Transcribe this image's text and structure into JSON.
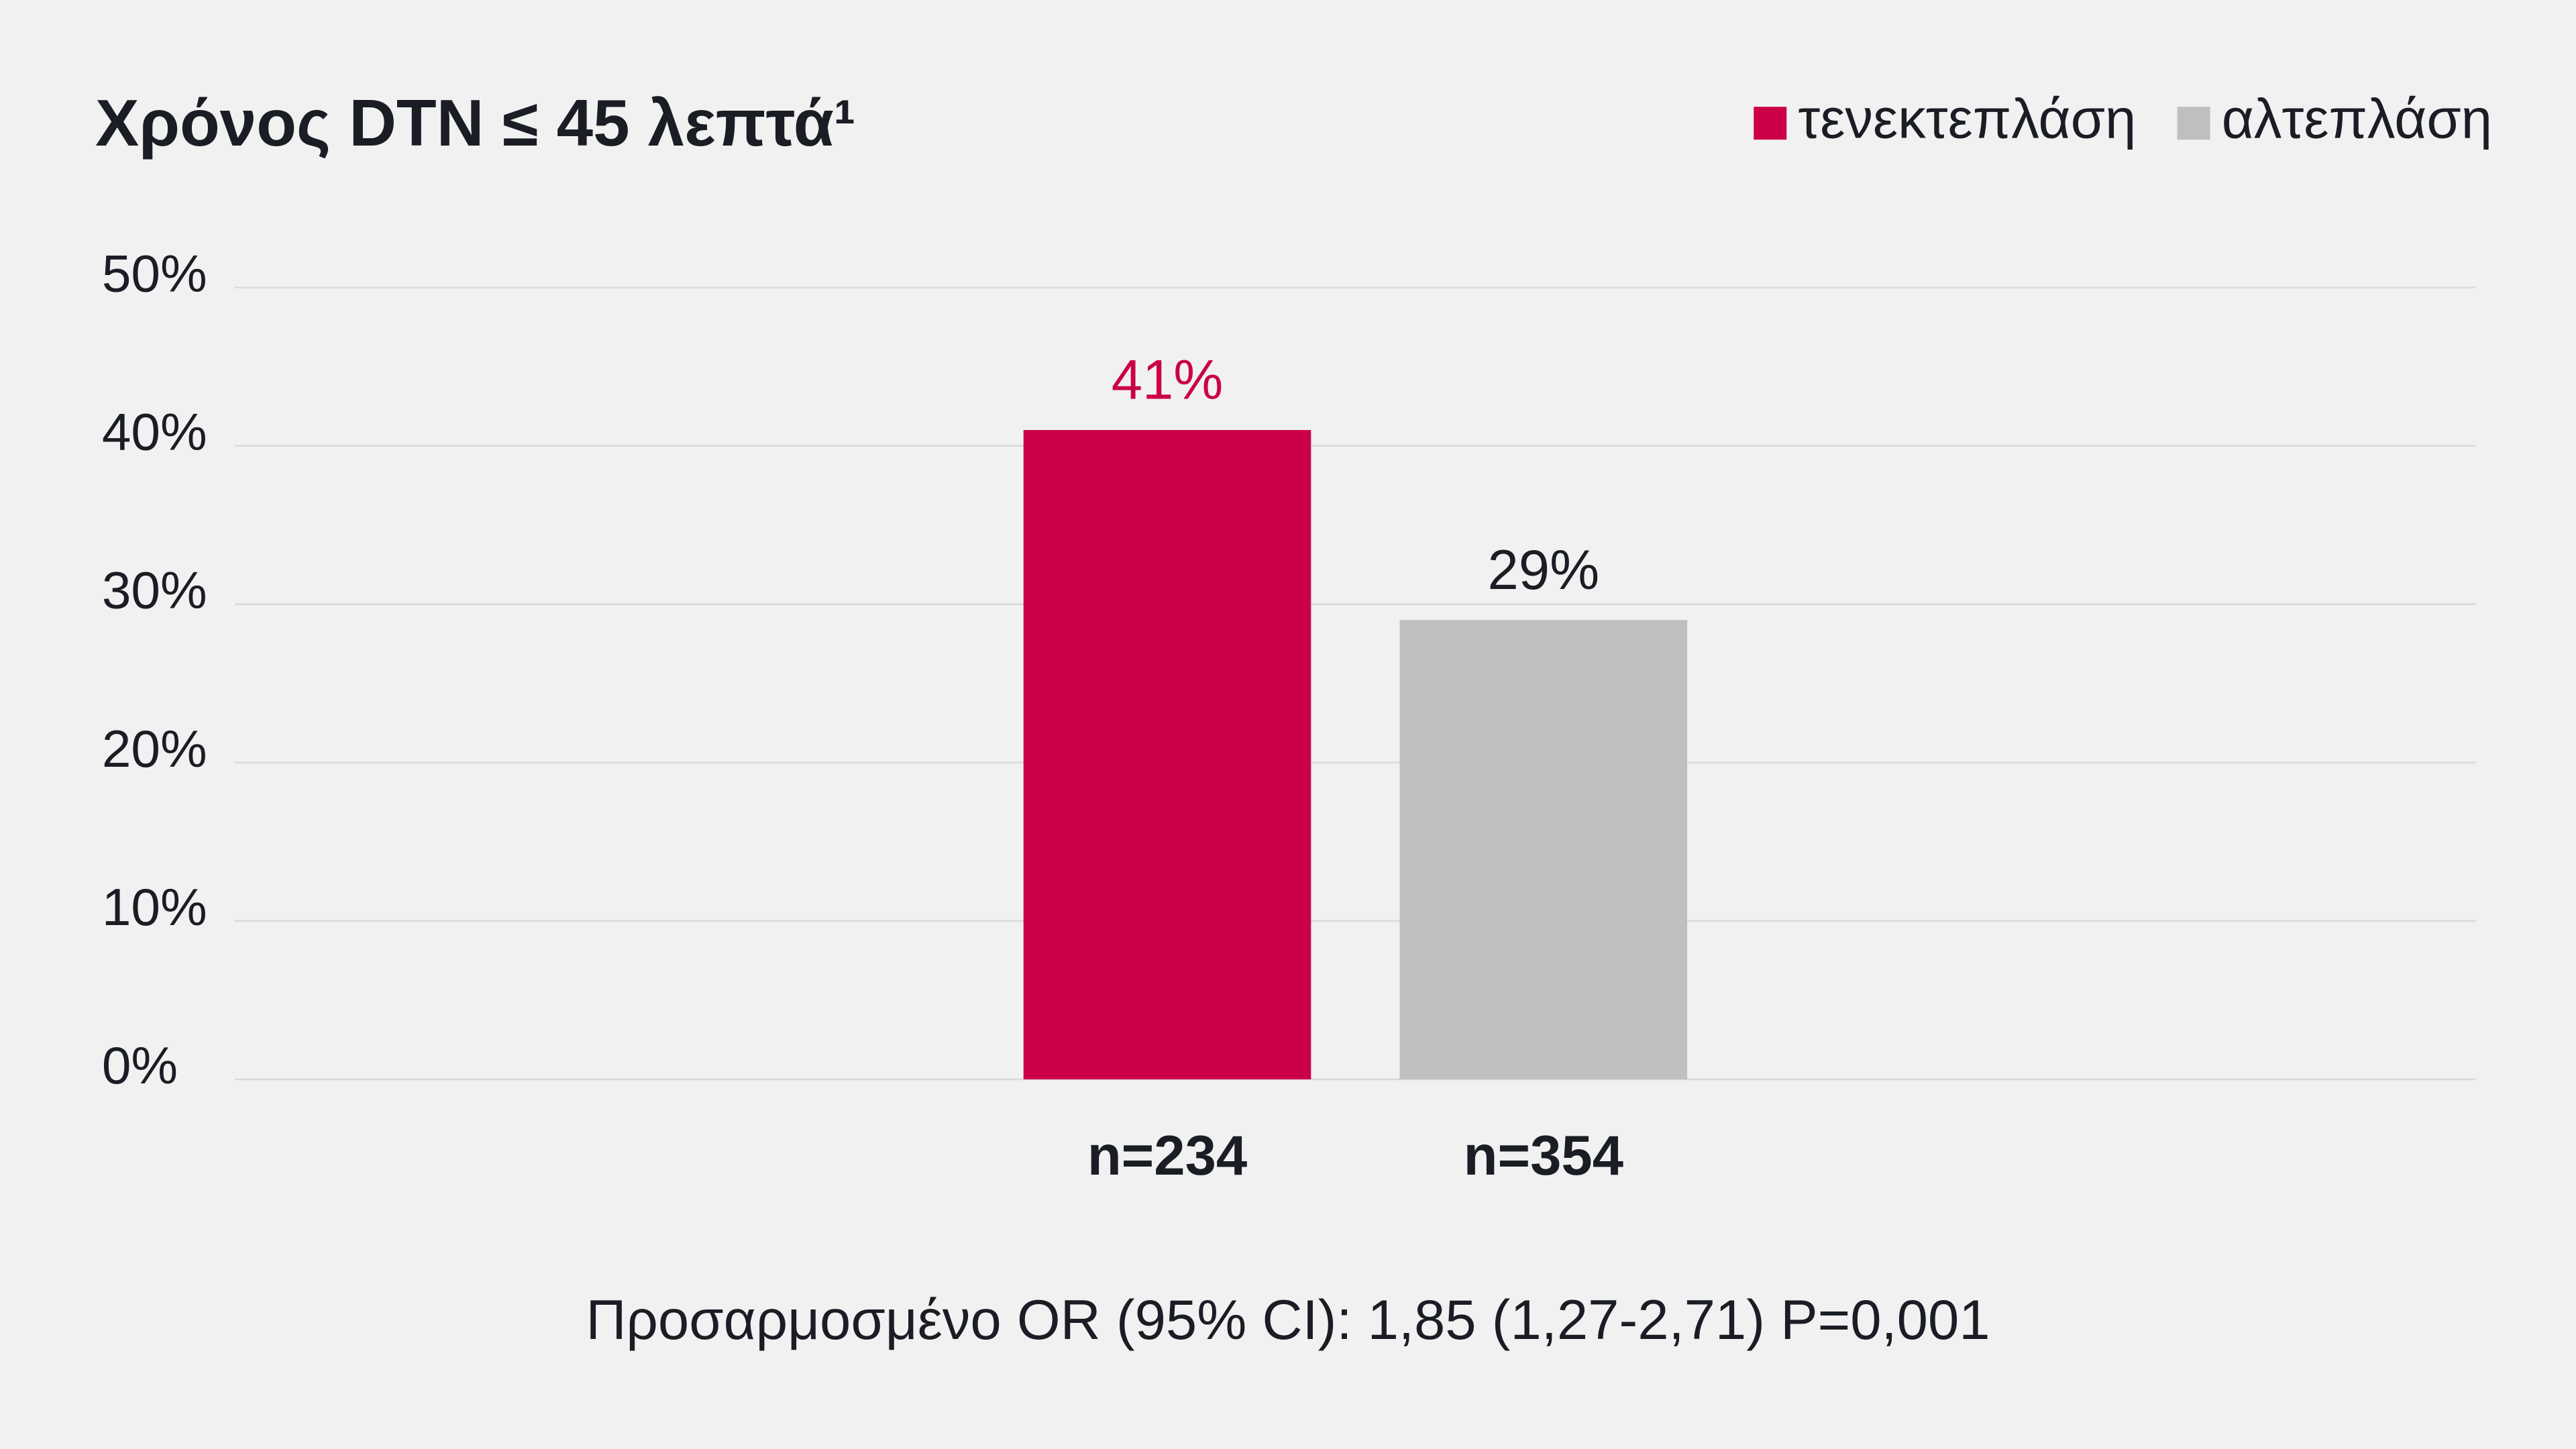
{
  "chart_data": {
    "type": "bar",
    "title": "Χρόνος DTN ≤ 45 λεπτά¹",
    "series": [
      {
        "name": "τενεκτεπλάση",
        "color": "#cc0048",
        "value_label_color": "#cc0048",
        "values": [
          41
        ],
        "value_labels": [
          "41%"
        ],
        "n_label": "n=234"
      },
      {
        "name": "αλτεπλάση",
        "color": "#bfbfbf",
        "value_label_color": "#1a1d24",
        "values": [
          29
        ],
        "value_labels": [
          "29%"
        ],
        "n_label": "n=354"
      }
    ],
    "ylim": [
      0,
      50
    ],
    "yticks": [
      {
        "value": 0,
        "label": "0%"
      },
      {
        "value": 10,
        "label": "10%"
      },
      {
        "value": 20,
        "label": "20%"
      },
      {
        "value": 30,
        "label": "30%"
      },
      {
        "value": 40,
        "label": "40%"
      },
      {
        "value": 50,
        "label": "50%"
      }
    ],
    "grid": true,
    "legend": "top-right",
    "note": "Προσαρμοσμένο OR (95% CI): 1,85 (1,27-2,71) P=0,001"
  }
}
